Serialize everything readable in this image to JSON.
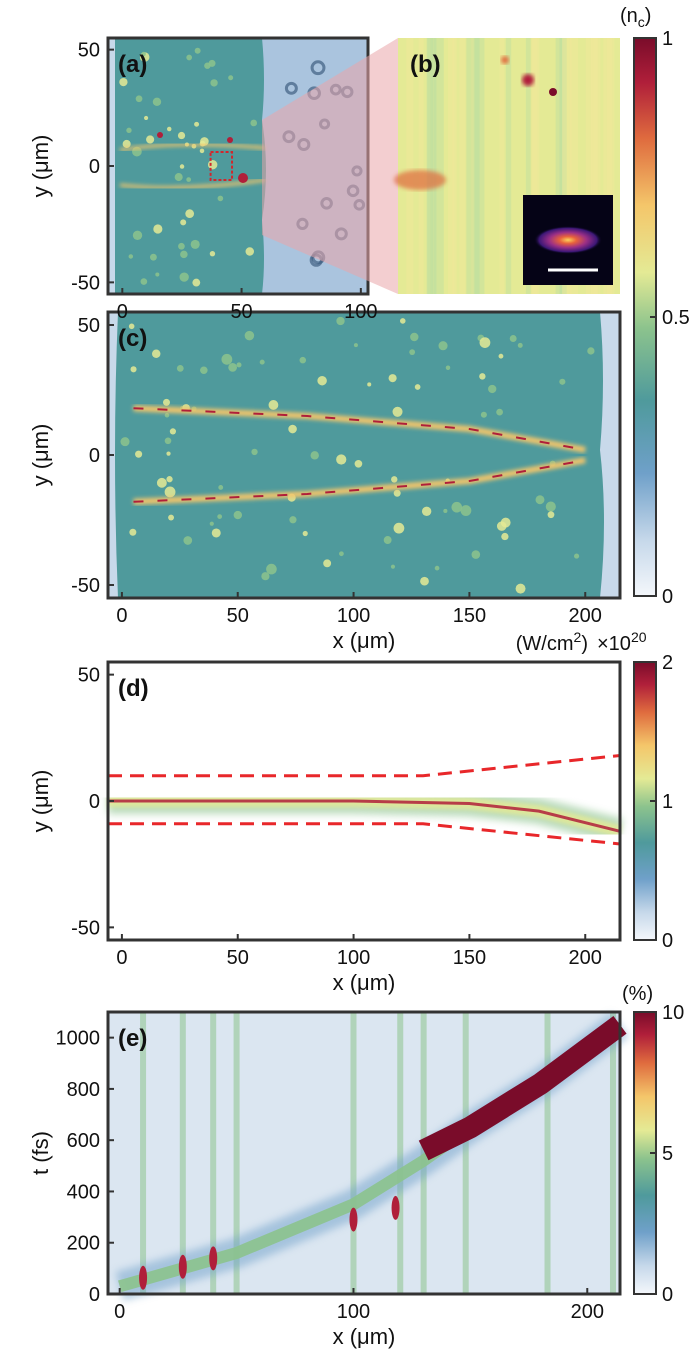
{
  "figure": {
    "colors": {
      "cmap": [
        "#f4f7fb",
        "#c6d8ea",
        "#6fa0c9",
        "#4f9a9c",
        "#8cc38d",
        "#e4ea95",
        "#f4c66a",
        "#df6b3e",
        "#b01f3a",
        "#7a0c2a"
      ],
      "inset_cmap": [
        "#050316",
        "#3c1776",
        "#9b2f86",
        "#e8623c",
        "#fbd35b"
      ],
      "guide_dash": "#e8272a",
      "zoom_wedge": "#e9a6aa",
      "zoom_box": "#d2262c"
    }
  },
  "chart_data": [
    {
      "panel": "a",
      "type": "heatmap",
      "label": "(a)",
      "xlabel": "",
      "ylabel": "y (μm)",
      "xlim": [
        -6,
        103
      ],
      "ylim": [
        -55,
        55
      ],
      "xticks": [
        0,
        50,
        100
      ],
      "yticks": [
        -50,
        0,
        50
      ],
      "xtick_labels": [
        "0",
        "50",
        "100"
      ],
      "ytick_labels": [
        "-50",
        "0",
        "50"
      ],
      "target_x_range": [
        0,
        65
      ],
      "zoom_box": {
        "x": [
          37,
          46
        ],
        "y": [
          -6,
          6
        ]
      }
    },
    {
      "panel": "b",
      "type": "heatmap",
      "label": "(b)",
      "inset": {
        "type": "heatmap",
        "description_free": true
      }
    },
    {
      "panel": "c",
      "type": "heatmap",
      "label": "(c)",
      "xlabel": "x (μm)",
      "ylabel": "y (μm)",
      "xlim": [
        -6,
        215
      ],
      "ylim": [
        -55,
        55
      ],
      "xticks": [
        0,
        50,
        100,
        150,
        200
      ],
      "yticks": [
        -50,
        0,
        50
      ],
      "xtick_labels": [
        "0",
        "50",
        "100",
        "150",
        "200"
      ],
      "ytick_labels": [
        "-50",
        "0",
        "50"
      ],
      "colorbar": {
        "unit": "(nₑ)",
        "unit_text": "(n",
        "unit_sub": "c",
        "unit_close": ")",
        "range": [
          0,
          1
        ],
        "ticks": [
          0,
          0.5,
          1
        ],
        "tick_labels": [
          "0",
          "0.5",
          "1"
        ]
      },
      "channel_walls": [
        {
          "x": [
            5,
            80,
            150,
            200
          ],
          "y": [
            18,
            15,
            10,
            2
          ]
        },
        {
          "x": [
            5,
            80,
            150,
            200
          ],
          "y": [
            -18,
            -15,
            -10,
            -2
          ]
        }
      ]
    },
    {
      "panel": "d",
      "type": "heatmap",
      "label": "(d)",
      "xlabel": "x (μm)",
      "ylabel": "y (μm)",
      "xlim": [
        -6,
        215
      ],
      "ylim": [
        -55,
        55
      ],
      "xticks": [
        0,
        50,
        100,
        150,
        200
      ],
      "yticks": [
        -50,
        0,
        50
      ],
      "xtick_labels": [
        "0",
        "50",
        "100",
        "150",
        "200"
      ],
      "ytick_labels": [
        "-50",
        "0",
        "50"
      ],
      "colorbar": {
        "unit": "(W/cm²)",
        "unit_text": "(W/cm",
        "unit_sup": "2",
        "unit_close": ")",
        "multiplier": "×10",
        "multiplier_exp": "20",
        "range": [
          0,
          2
        ],
        "ticks": [
          0,
          1,
          2
        ],
        "tick_labels": [
          "0",
          "1",
          "2"
        ]
      },
      "dashed_guides": [
        {
          "x": [
            -6,
            130,
            215
          ],
          "y": [
            10,
            10,
            18
          ]
        },
        {
          "x": [
            -6,
            130,
            215
          ],
          "y": [
            -9,
            -9,
            -17
          ]
        }
      ],
      "beam_centerline": {
        "x": [
          -6,
          50,
          100,
          150,
          180,
          215
        ],
        "y": [
          0,
          0,
          0,
          -1,
          -4,
          -12
        ]
      }
    },
    {
      "panel": "e",
      "type": "heatmap",
      "label": "(e)",
      "xlabel": "x (μm)",
      "ylabel": "t (fs)",
      "xlim": [
        -5,
        214
      ],
      "ylim": [
        0,
        1100
      ],
      "xticks": [
        0,
        100,
        200
      ],
      "yticks": [
        0,
        200,
        400,
        600,
        800,
        1000
      ],
      "xtick_labels": [
        "0",
        "100",
        "200"
      ],
      "ytick_labels": [
        "0",
        "200",
        "400",
        "600",
        "800",
        "1000"
      ],
      "colorbar": {
        "unit": "(%)",
        "range": [
          0,
          10
        ],
        "ticks": [
          0,
          5,
          10
        ],
        "tick_labels": [
          "0",
          "5",
          "10"
        ]
      },
      "front_trajectory": {
        "x": [
          0,
          50,
          100,
          130,
          150,
          180,
          214
        ],
        "t": [
          30,
          160,
          350,
          520,
          650,
          820,
          1050
        ]
      },
      "vertical_streaks_x": [
        10,
        27,
        40,
        50,
        100,
        120,
        130,
        148,
        183,
        211
      ]
    }
  ]
}
